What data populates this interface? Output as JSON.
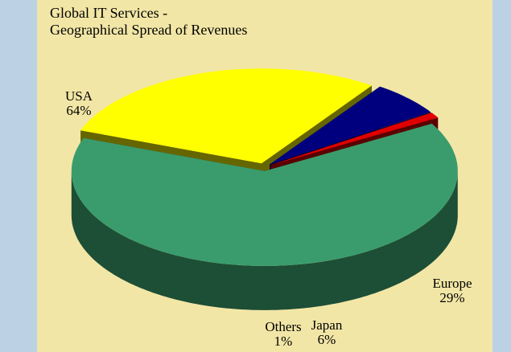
{
  "chart_data": {
    "type": "pie3d",
    "title": "Global IT Services -",
    "subtitle": "Geographical Spread of Revenues",
    "categories": [
      "USA",
      "Europe",
      "Japan",
      "Others"
    ],
    "values": [
      64,
      29,
      6,
      1
    ],
    "value_labels": [
      "64%",
      "29%",
      "6%",
      "1%"
    ],
    "colors": [
      "#3a9c6c",
      "#ffff00",
      "#00007f",
      "#e00000"
    ]
  }
}
